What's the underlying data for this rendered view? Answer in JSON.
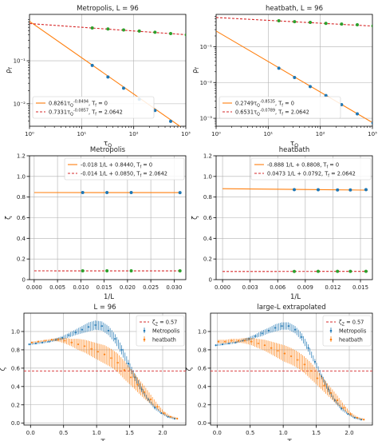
{
  "colors": {
    "orange": "#ff7f0e",
    "red": "#d62728",
    "blue": "#1f77b4",
    "green": "#2ca02c",
    "grid": "#b0b0b0",
    "axis": "#000000",
    "legend_border": "#cccccc"
  },
  "chart_data": [
    {
      "id": "p1",
      "type": "line",
      "title": "Metropolis, L = 96",
      "xlabel": "τQ",
      "ylabel": "ρf",
      "xscale": "log",
      "yscale": "log",
      "xlim": [
        1,
        1000
      ],
      "ylim": [
        0.003,
        1.2
      ],
      "xticks": [
        1,
        10,
        100,
        1000
      ],
      "xticklabels": [
        "10⁰",
        "10¹",
        "10²",
        "10³"
      ],
      "yticks": [
        0.01,
        0.1
      ],
      "yticklabels": [
        "10⁻²",
        "10⁻¹"
      ],
      "grid": true,
      "legend_position": "bottom-left",
      "series": [
        {
          "name": "0.8261τQ^-0.8494, Tf = 0",
          "style": "line",
          "color": "orange",
          "x": [
            1,
            1000
          ],
          "y": [
            0.8261,
            0.0024
          ]
        },
        {
          "name": "0.7331τQ^-0.0857, Tf = 2.0642",
          "style": "dashed",
          "color": "red",
          "x": [
            1,
            1000
          ],
          "y": [
            0.7331,
            0.405
          ]
        },
        {
          "style": "points",
          "color": "blue",
          "x": [
            16,
            32,
            64,
            128,
            256,
            512,
            1024
          ],
          "y": [
            0.078,
            0.042,
            0.023,
            0.0127,
            0.007,
            0.0039,
            0.0022
          ]
        },
        {
          "style": "points",
          "color": "green",
          "x": [
            16,
            32,
            64,
            128,
            256,
            512,
            1024
          ],
          "y": [
            0.58,
            0.55,
            0.52,
            0.49,
            0.46,
            0.43,
            0.4
          ]
        }
      ]
    },
    {
      "id": "p2",
      "type": "line",
      "title": "heatbath, L = 96",
      "xlabel": "τQ",
      "ylabel": "ρf",
      "xscale": "log",
      "yscale": "log",
      "xlim": [
        1,
        1000
      ],
      "ylim": [
        0.0006,
        0.8
      ],
      "xticks": [
        1,
        10,
        100,
        1000
      ],
      "xticklabels": [
        "10⁰",
        "10¹",
        "10²",
        "10³"
      ],
      "yticks": [
        0.001,
        0.01,
        0.1
      ],
      "yticklabels": [
        "10⁻³",
        "10⁻²",
        "10⁻¹"
      ],
      "grid": true,
      "legend_position": "bottom-left",
      "series": [
        {
          "name": "0.2749τQ^-0.8535, Tf = 0",
          "style": "line",
          "color": "orange",
          "x": [
            1,
            1000
          ],
          "y": [
            0.2749,
            0.00076
          ]
        },
        {
          "name": "0.6531τQ^-0.0789, Tf = 2.0642",
          "style": "dashed",
          "color": "red",
          "x": [
            1,
            1000
          ],
          "y": [
            0.6531,
            0.377
          ]
        },
        {
          "style": "points",
          "color": "blue",
          "x": [
            16,
            32,
            64,
            128,
            256,
            512,
            1024
          ],
          "y": [
            0.025,
            0.0138,
            0.0077,
            0.0043,
            0.0024,
            0.00133,
            0.00074
          ]
        },
        {
          "style": "points",
          "color": "green",
          "x": [
            16,
            32,
            64,
            128,
            256,
            512,
            1024
          ],
          "y": [
            0.53,
            0.5,
            0.48,
            0.45,
            0.43,
            0.41,
            0.38
          ]
        }
      ]
    },
    {
      "id": "p3",
      "type": "line",
      "title": "Metropolis",
      "xlabel": "1/L",
      "ylabel": "ζ",
      "xlim": [
        -0.001,
        0.0325
      ],
      "ylim": [
        0,
        1.2
      ],
      "xticks": [
        0,
        0.005,
        0.01,
        0.015,
        0.02,
        0.025,
        0.03
      ],
      "xticklabels": [
        "0.000",
        "0.005",
        "0.010",
        "0.015",
        "0.020",
        "0.025",
        "0.030"
      ],
      "yticks": [
        0,
        0.2,
        0.4,
        0.6,
        0.8,
        1.0,
        1.2
      ],
      "yticklabels": [
        "0",
        "0.2",
        "0.4",
        "0.6",
        "0.8",
        "1.0",
        "1.2"
      ],
      "grid": true,
      "legend_position": "top",
      "series": [
        {
          "name": "-0.018 1/L + 0.8440, Tf = 0",
          "style": "line",
          "color": "orange",
          "x": [
            0,
            0.0315
          ],
          "y": [
            0.844,
            0.8434
          ]
        },
        {
          "name": "-0.014 1/L + 0.0850, Tf = 2.0642",
          "style": "dashed",
          "color": "red",
          "x": [
            0,
            0.0315
          ],
          "y": [
            0.085,
            0.0846
          ]
        },
        {
          "style": "points",
          "color": "blue",
          "x": [
            0.0104,
            0.0156,
            0.0208,
            0.03125
          ],
          "y": [
            0.844,
            0.844,
            0.844,
            0.843
          ]
        },
        {
          "style": "points",
          "color": "green",
          "x": [
            0.0104,
            0.0156,
            0.0208,
            0.03125
          ],
          "y": [
            0.085,
            0.085,
            0.085,
            0.085
          ]
        }
      ]
    },
    {
      "id": "p4",
      "type": "line",
      "title": "heatbath",
      "xlabel": "1/L",
      "ylabel": "ζ",
      "xlim": [
        -0.0007,
        0.0163
      ],
      "ylim": [
        0,
        1.2
      ],
      "xticks": [
        0,
        0.003,
        0.006,
        0.009,
        0.012,
        0.015
      ],
      "xticklabels": [
        "0.000",
        "0.003",
        "0.006",
        "0.009",
        "0.012",
        "0.015"
      ],
      "yticks": [
        0,
        0.2,
        0.4,
        0.6,
        0.8,
        1.0,
        1.2
      ],
      "yticklabels": [
        "0",
        "0.2",
        "0.4",
        "0.6",
        "0.8",
        "1.0",
        "1.2"
      ],
      "grid": true,
      "legend_position": "top",
      "series": [
        {
          "name": "-0.888 1/L + 0.8808, Tf = 0",
          "style": "line",
          "color": "orange",
          "x": [
            0,
            0.0158
          ],
          "y": [
            0.8808,
            0.8668
          ]
        },
        {
          "name": "0.0473 1/L + 0.0792, Tf = 2.0642",
          "style": "dashed",
          "color": "red",
          "x": [
            0,
            0.0158
          ],
          "y": [
            0.0792,
            0.08
          ]
        },
        {
          "style": "points",
          "color": "blue",
          "x": [
            0.0078,
            0.0104,
            0.0125,
            0.0139,
            0.0156
          ],
          "y": [
            0.872,
            0.871,
            0.869,
            0.869,
            0.872
          ]
        },
        {
          "style": "points",
          "color": "green",
          "x": [
            0.0078,
            0.0104,
            0.0125,
            0.0139,
            0.0156
          ],
          "y": [
            0.079,
            0.08,
            0.08,
            0.08,
            0.08
          ]
        }
      ]
    },
    {
      "id": "p5",
      "type": "scatter",
      "title": "L = 96",
      "xlabel": "Tf",
      "ylabel": "ζ",
      "xlim": [
        -0.1,
        2.35
      ],
      "ylim": [
        -0.02,
        1.2
      ],
      "xticks": [
        0,
        0.5,
        1.0,
        1.5,
        2.0
      ],
      "xticklabels": [
        "0.0",
        "0.5",
        "1.0",
        "1.5",
        "2.0"
      ],
      "yticks": [
        0,
        0.2,
        0.4,
        0.6,
        0.8,
        1.0
      ],
      "yticklabels": [
        "0.0",
        "0.2",
        "0.4",
        "0.6",
        "0.8",
        "1.0"
      ],
      "grid": true,
      "legend_position": "top-right",
      "legend": [
        "ζZ = 0.57",
        "Metropolis",
        "heatbath"
      ],
      "hline": {
        "y": 0.57,
        "color": "red",
        "name": "ζZ = 0.57"
      },
      "series": [
        {
          "name": "Metropolis",
          "color": "blue",
          "x": [
            0.0,
            0.1,
            0.2,
            0.3,
            0.4,
            0.5,
            0.6,
            0.7,
            0.8,
            0.9,
            1.0,
            1.1,
            1.2,
            1.3,
            1.4,
            1.5,
            1.6,
            1.7,
            1.8,
            1.9,
            2.0,
            2.1,
            2.2
          ],
          "y": [
            0.86,
            0.87,
            0.88,
            0.89,
            0.91,
            0.93,
            0.96,
            0.99,
            1.02,
            1.05,
            1.07,
            1.06,
            1.01,
            0.92,
            0.8,
            0.65,
            0.5,
            0.37,
            0.26,
            0.17,
            0.11,
            0.07,
            0.05
          ],
          "err": [
            0.01,
            0.01,
            0.01,
            0.01,
            0.015,
            0.02,
            0.025,
            0.03,
            0.04,
            0.05,
            0.05,
            0.05,
            0.05,
            0.05,
            0.05,
            0.04,
            0.04,
            0.03,
            0.02,
            0.02,
            0.01,
            0.01,
            0.01
          ]
        },
        {
          "name": "heatbath",
          "color": "orange",
          "x": [
            0.0,
            0.1,
            0.2,
            0.3,
            0.4,
            0.5,
            0.6,
            0.7,
            0.8,
            0.9,
            1.0,
            1.1,
            1.2,
            1.3,
            1.4,
            1.5,
            1.6,
            1.7,
            1.8,
            1.9,
            2.0,
            2.1,
            2.2
          ],
          "y": [
            0.88,
            0.89,
            0.9,
            0.91,
            0.91,
            0.9,
            0.88,
            0.86,
            0.84,
            0.81,
            0.78,
            0.75,
            0.71,
            0.66,
            0.58,
            0.5,
            0.42,
            0.34,
            0.26,
            0.18,
            0.11,
            0.07,
            0.05
          ],
          "err": [
            0.01,
            0.01,
            0.01,
            0.01,
            0.02,
            0.03,
            0.04,
            0.06,
            0.07,
            0.08,
            0.09,
            0.1,
            0.1,
            0.1,
            0.1,
            0.09,
            0.08,
            0.07,
            0.05,
            0.03,
            0.02,
            0.01,
            0.01
          ]
        }
      ]
    },
    {
      "id": "p6",
      "type": "scatter",
      "title": "large-L extrapolated",
      "xlabel": "Tf",
      "ylabel": "ζ",
      "xlim": [
        -0.1,
        2.35
      ],
      "ylim": [
        -0.02,
        1.2
      ],
      "xticks": [
        0,
        0.5,
        1.0,
        1.5,
        2.0
      ],
      "xticklabels": [
        "0.0",
        "0.5",
        "1.0",
        "1.5",
        "2.0"
      ],
      "yticks": [
        0,
        0.2,
        0.4,
        0.6,
        0.8,
        1.0
      ],
      "yticklabels": [
        "0.0",
        "0.2",
        "0.4",
        "0.6",
        "0.8",
        "1.0"
      ],
      "grid": true,
      "legend_position": "top-right",
      "legend": [
        "ζZ = 0.57",
        "Metropolis",
        "heatbath"
      ],
      "hline": {
        "y": 0.57,
        "color": "red",
        "name": "ζZ = 0.57"
      },
      "series": [
        {
          "name": "Metropolis",
          "color": "blue",
          "x": [
            0.0,
            0.1,
            0.2,
            0.3,
            0.4,
            0.5,
            0.6,
            0.7,
            0.8,
            0.9,
            1.0,
            1.1,
            1.2,
            1.3,
            1.4,
            1.5,
            1.6,
            1.7,
            1.8,
            1.9,
            2.0,
            2.1,
            2.2
          ],
          "y": [
            0.85,
            0.86,
            0.87,
            0.88,
            0.9,
            0.92,
            0.95,
            0.98,
            1.01,
            1.04,
            1.06,
            1.06,
            1.02,
            0.94,
            0.82,
            0.67,
            0.51,
            0.37,
            0.25,
            0.16,
            0.1,
            0.06,
            0.04
          ],
          "err": [
            0.01,
            0.01,
            0.01,
            0.01,
            0.01,
            0.02,
            0.02,
            0.03,
            0.03,
            0.04,
            0.04,
            0.04,
            0.04,
            0.04,
            0.04,
            0.03,
            0.03,
            0.03,
            0.02,
            0.02,
            0.01,
            0.01,
            0.01
          ]
        },
        {
          "name": "heatbath",
          "color": "orange",
          "x": [
            0.0,
            0.1,
            0.2,
            0.3,
            0.4,
            0.5,
            0.6,
            0.7,
            0.8,
            0.9,
            1.0,
            1.1,
            1.2,
            1.3,
            1.4,
            1.5,
            1.6,
            1.7,
            1.8,
            1.9,
            2.0,
            2.1,
            2.2
          ],
          "y": [
            0.89,
            0.89,
            0.9,
            0.9,
            0.9,
            0.89,
            0.87,
            0.85,
            0.82,
            0.79,
            0.76,
            0.73,
            0.69,
            0.64,
            0.57,
            0.49,
            0.41,
            0.33,
            0.25,
            0.17,
            0.1,
            0.06,
            0.04
          ],
          "err": [
            0.02,
            0.02,
            0.02,
            0.02,
            0.03,
            0.04,
            0.05,
            0.06,
            0.07,
            0.08,
            0.09,
            0.09,
            0.09,
            0.09,
            0.09,
            0.08,
            0.07,
            0.06,
            0.05,
            0.03,
            0.02,
            0.01,
            0.01
          ]
        }
      ]
    }
  ]
}
